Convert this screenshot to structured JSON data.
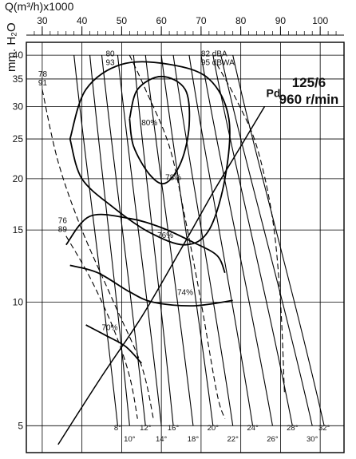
{
  "chart_data": {
    "type": "line",
    "title_model": "125/6",
    "title_speed": "960 r/min",
    "xlabel": "Q(m³/h)x1000",
    "ylabel": "mm. H₂O",
    "x_scale": "linear",
    "y_scale": "log",
    "xlim": [
      26,
      106
    ],
    "ylim": [
      4.3,
      43
    ],
    "x_ticks": [
      30,
      40,
      50,
      60,
      70,
      80,
      90,
      100
    ],
    "y_ticks": [
      5,
      10,
      15,
      20,
      25,
      30,
      35,
      40
    ],
    "grid": true,
    "blade_angles": [
      {
        "label": "8°",
        "q_bottom": 49,
        "q_top": 38
      },
      {
        "label": "10°",
        "q_bottom": 52,
        "q_top": 42
      },
      {
        "label": "12°",
        "q_bottom": 56,
        "q_top": 45
      },
      {
        "label": "14°",
        "q_bottom": 60,
        "q_top": 49
      },
      {
        "label": "16°",
        "q_bottom": 63,
        "q_top": 53
      },
      {
        "label": "18°",
        "q_bottom": 68,
        "q_top": 56
      },
      {
        "label": "20°",
        "q_bottom": 73,
        "q_top": 60
      },
      {
        "label": "22°",
        "q_bottom": 78,
        "q_top": 63
      },
      {
        "label": "24°",
        "q_bottom": 83,
        "q_top": 67
      },
      {
        "label": "26°",
        "q_bottom": 88,
        "q_top": 70
      },
      {
        "label": "28°",
        "q_bottom": 93,
        "q_top": 73
      },
      {
        "label": "30°",
        "q_bottom": 98,
        "q_top": 75
      },
      {
        "label": "32°",
        "q_bottom": 101,
        "q_top": 78
      }
    ],
    "efficiency_labels": [
      {
        "label": "80%",
        "q": 57,
        "p": 27.5
      },
      {
        "label": "78%",
        "q": 63,
        "p": 20.2
      },
      {
        "label": "76%",
        "q": 61,
        "p": 14.6
      },
      {
        "label": "74%",
        "q": 66,
        "p": 10.6
      },
      {
        "label": "70%",
        "q": 47,
        "p": 8.7
      }
    ],
    "efficiency_contours": [
      {
        "label": "80%",
        "points": [
          [
            52,
            28
          ],
          [
            54,
            33
          ],
          [
            60,
            35.5
          ],
          [
            66,
            33
          ],
          [
            67,
            27
          ],
          [
            65,
            22
          ],
          [
            61,
            19.5
          ],
          [
            57,
            20.5
          ],
          [
            53,
            24
          ],
          [
            52,
            28
          ]
        ]
      },
      {
        "label": "78%",
        "points": [
          [
            37,
            25
          ],
          [
            41,
            33
          ],
          [
            50,
            38
          ],
          [
            62,
            38
          ],
          [
            72,
            35
          ],
          [
            77,
            28
          ],
          [
            76,
            20
          ],
          [
            72,
            15
          ],
          [
            66,
            13.8
          ],
          [
            57,
            14.8
          ],
          [
            48,
            17
          ],
          [
            40,
            20
          ],
          [
            37,
            25
          ]
        ]
      },
      {
        "label": "76%",
        "points": [
          [
            36,
            13.8
          ],
          [
            42,
            16.2
          ],
          [
            52,
            16
          ],
          [
            60,
            15.2
          ],
          [
            68,
            14
          ],
          [
            74,
            13
          ],
          [
            76,
            11.8
          ]
        ]
      },
      {
        "label": "74%",
        "points": [
          [
            37,
            12.3
          ],
          [
            44,
            11.8
          ],
          [
            52,
            10.6
          ],
          [
            58,
            10
          ],
          [
            68,
            9.8
          ],
          [
            78,
            10.1
          ]
        ]
      },
      {
        "label": "70%",
        "points": [
          [
            41,
            8.8
          ],
          [
            46,
            8.3
          ],
          [
            51,
            7.8
          ],
          [
            55,
            7.1
          ]
        ]
      }
    ],
    "noise_labels": [
      {
        "dba": "78",
        "dbwa": "91",
        "q": 29,
        "p": 35.5
      },
      {
        "dba": "80",
        "dbwa": "93",
        "q": 46,
        "p": 39.8
      },
      {
        "dba": "82 dBA",
        "dbwa": "95 dBWA",
        "q": 70,
        "p": 39.8
      },
      {
        "dba": "76",
        "dbwa": "89",
        "q": 34,
        "p": 15.6
      }
    ],
    "noise_curves": [
      {
        "label": "78/91",
        "points": [
          [
            30,
            33
          ],
          [
            34,
            22
          ],
          [
            40,
            15
          ],
          [
            48,
            10
          ],
          [
            55,
            7
          ],
          [
            58,
            5.2
          ]
        ]
      },
      {
        "label": "80/93",
        "points": [
          [
            52,
            40
          ],
          [
            56,
            33
          ],
          [
            62,
            24
          ],
          [
            66,
            16
          ],
          [
            70,
            10
          ],
          [
            74,
            6
          ],
          [
            76,
            5.2
          ]
        ]
      },
      {
        "label": "82/95",
        "points": [
          [
            74,
            38
          ],
          [
            79,
            31
          ],
          [
            84,
            24
          ],
          [
            88,
            16
          ],
          [
            90,
            10
          ],
          [
            91,
            6
          ]
        ]
      },
      {
        "label": "76/89",
        "points": [
          [
            36,
            14.5
          ],
          [
            42,
            11.5
          ],
          [
            48,
            8.6
          ],
          [
            52,
            6.6
          ],
          [
            54,
            5.2
          ]
        ]
      }
    ],
    "pd_curve": {
      "label": "Pd",
      "points": [
        [
          34,
          4.5
        ],
        [
          45,
          6.6
        ],
        [
          55,
          9.2
        ],
        [
          65,
          13.5
        ],
        [
          73,
          18.5
        ],
        [
          80,
          24
        ],
        [
          86,
          30
        ]
      ]
    }
  }
}
